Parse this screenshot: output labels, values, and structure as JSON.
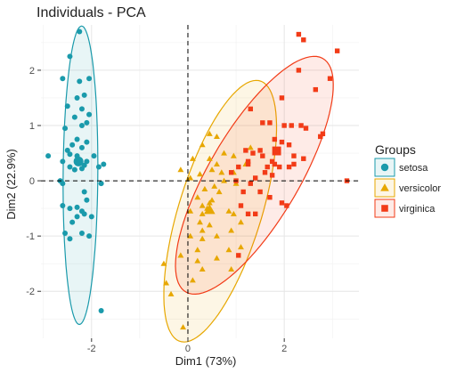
{
  "chart_data": {
    "type": "scatter",
    "title": "Individuals - PCA",
    "xlabel": "Dim1 (73%)",
    "ylabel": "Dim2 (22.9%)",
    "xlim": [
      -3.05,
      3.55
    ],
    "ylim": [
      -2.85,
      2.82
    ],
    "xticks": [
      -2,
      0,
      2
    ],
    "yticks": [
      -2,
      -1,
      0,
      1,
      2
    ],
    "grid": true,
    "reference_lines": {
      "x": 0,
      "y": 0,
      "style": "dashed"
    },
    "legend": {
      "title": "Groups",
      "position": "right"
    },
    "series": [
      {
        "name": "setosa",
        "color": "#1a9aab",
        "marker": "circle",
        "ellipse": {
          "cx": -2.23,
          "cy": 0.1,
          "rx": 0.36,
          "ry": 2.7,
          "angle_deg": -0.5
        },
        "points": [
          [
            -2.25,
            2.7
          ],
          [
            -2.45,
            2.25
          ],
          [
            -2.6,
            1.85
          ],
          [
            -2.05,
            1.85
          ],
          [
            -2.25,
            1.8
          ],
          [
            -2.15,
            1.55
          ],
          [
            -2.3,
            1.5
          ],
          [
            -2.5,
            1.35
          ],
          [
            -2.2,
            1.3
          ],
          [
            -2.05,
            1.2
          ],
          [
            -2.35,
            1.15
          ],
          [
            -2.1,
            1.05
          ],
          [
            -2.2,
            1.0
          ],
          [
            -2.55,
            0.95
          ],
          [
            -2.1,
            0.7
          ],
          [
            -2.3,
            0.75
          ],
          [
            -2.4,
            0.65
          ],
          [
            -2.5,
            0.55
          ],
          [
            -2.2,
            0.6
          ],
          [
            -2.45,
            0.48
          ],
          [
            -2.3,
            0.45
          ],
          [
            -1.95,
            0.45
          ],
          [
            -2.1,
            0.35
          ],
          [
            -2.9,
            0.45
          ],
          [
            -2.6,
            0.35
          ],
          [
            -2.25,
            0.32
          ],
          [
            -2.15,
            0.28
          ],
          [
            -2.45,
            0.25
          ],
          [
            -2.2,
            0.22
          ],
          [
            -2.35,
            0.2
          ],
          [
            -1.75,
            0.3
          ],
          [
            -1.85,
            0.25
          ],
          [
            -2.65,
            0.0
          ],
          [
            -2.6,
            -0.05
          ],
          [
            -1.8,
            -0.05
          ],
          [
            -2.15,
            -0.2
          ],
          [
            -2.1,
            -0.35
          ],
          [
            -2.6,
            -0.45
          ],
          [
            -2.3,
            -0.48
          ],
          [
            -2.45,
            -0.5
          ],
          [
            -2.2,
            -0.55
          ],
          [
            -2.15,
            -0.6
          ],
          [
            -2.3,
            -0.65
          ],
          [
            -2.0,
            -0.65
          ],
          [
            -2.4,
            -0.75
          ],
          [
            -2.55,
            -0.95
          ],
          [
            -2.2,
            -0.95
          ],
          [
            -2.05,
            -1.0
          ],
          [
            -2.45,
            -1.05
          ],
          [
            -1.8,
            -2.35
          ]
        ]
      },
      {
        "name": "versicolor",
        "color": "#e7a700",
        "marker": "triangle",
        "ellipse": {
          "cx": 0.67,
          "cy": -0.55,
          "rx": 2.5,
          "ry": 0.85,
          "angle_deg": 70
        },
        "points": [
          [
            0.45,
            0.85
          ],
          [
            0.6,
            0.8
          ],
          [
            0.3,
            0.65
          ],
          [
            1.3,
            0.6
          ],
          [
            0.75,
            0.5
          ],
          [
            0.95,
            0.45
          ],
          [
            0.1,
            0.4
          ],
          [
            0.45,
            0.4
          ],
          [
            1.2,
            0.3
          ],
          [
            0.6,
            0.3
          ],
          [
            -0.15,
            0.2
          ],
          [
            0.5,
            0.2
          ],
          [
            0.95,
            0.15
          ],
          [
            0.25,
            0.12
          ],
          [
            0.7,
            0.15
          ],
          [
            0.05,
            0.05
          ],
          [
            0.75,
            0.0
          ],
          [
            0.55,
            -0.1
          ],
          [
            0.35,
            -0.15
          ],
          [
            0.65,
            -0.2
          ],
          [
            1.0,
            -0.05
          ],
          [
            0.2,
            -0.3
          ],
          [
            0.5,
            -0.35
          ],
          [
            0.45,
            -0.4
          ],
          [
            0.3,
            -0.45
          ],
          [
            0.4,
            -0.5
          ],
          [
            0.05,
            -0.55
          ],
          [
            0.3,
            -0.6
          ],
          [
            0.85,
            -0.55
          ],
          [
            0.95,
            -0.6
          ],
          [
            0.25,
            -0.75
          ],
          [
            0.45,
            -0.8
          ],
          [
            1.1,
            -0.75
          ],
          [
            0.3,
            -0.9
          ],
          [
            0.9,
            -0.9
          ],
          [
            0.05,
            -1.0
          ],
          [
            0.3,
            -1.05
          ],
          [
            0.6,
            -1.0
          ],
          [
            0.2,
            -1.25
          ],
          [
            0.85,
            -1.25
          ],
          [
            1.1,
            -1.2
          ],
          [
            -0.15,
            -1.35
          ],
          [
            0.2,
            -1.45
          ],
          [
            0.6,
            -1.4
          ],
          [
            0.3,
            -1.6
          ],
          [
            0.9,
            -1.6
          ],
          [
            0.1,
            -1.8
          ],
          [
            -0.5,
            -1.5
          ],
          [
            -0.45,
            -1.85
          ],
          [
            -0.35,
            -2.05
          ],
          [
            -0.1,
            -2.65
          ]
        ]
      },
      {
        "name": "virginica",
        "color": "#f23b17",
        "marker": "square",
        "ellipse": {
          "cx": 1.38,
          "cy": 0.1,
          "rx": 2.55,
          "ry": 0.9,
          "angle_deg": 55
        },
        "points": [
          [
            2.3,
            2.65
          ],
          [
            2.4,
            2.55
          ],
          [
            2.3,
            2.0
          ],
          [
            3.1,
            2.35
          ],
          [
            2.95,
            1.85
          ],
          [
            2.65,
            1.65
          ],
          [
            1.95,
            1.5
          ],
          [
            1.3,
            1.3
          ],
          [
            1.55,
            1.05
          ],
          [
            1.7,
            1.05
          ],
          [
            2.0,
            1.0
          ],
          [
            2.15,
            1.0
          ],
          [
            2.35,
            1.0
          ],
          [
            2.45,
            0.95
          ],
          [
            2.8,
            0.85
          ],
          [
            2.75,
            0.8
          ],
          [
            1.8,
            0.75
          ],
          [
            1.95,
            0.7
          ],
          [
            2.1,
            0.65
          ],
          [
            1.5,
            0.55
          ],
          [
            1.55,
            0.45
          ],
          [
            2.2,
            0.45
          ],
          [
            2.4,
            0.4
          ],
          [
            2.2,
            0.3
          ],
          [
            1.75,
            0.35
          ],
          [
            1.8,
            0.3
          ],
          [
            1.65,
            0.25
          ],
          [
            1.9,
            0.25
          ],
          [
            2.1,
            0.25
          ],
          [
            1.25,
            0.3
          ],
          [
            1.35,
            0.5
          ],
          [
            1.2,
            0.55
          ],
          [
            1.25,
            0.35
          ],
          [
            1.05,
            0.25
          ],
          [
            0.9,
            0.15
          ],
          [
            1.0,
            0.0
          ],
          [
            1.4,
            0.05
          ],
          [
            1.6,
            0.15
          ],
          [
            1.75,
            0.1
          ],
          [
            1.3,
            -0.05
          ],
          [
            1.15,
            -0.2
          ],
          [
            1.5,
            -0.2
          ],
          [
            1.7,
            -0.3
          ],
          [
            1.95,
            -0.4
          ],
          [
            2.05,
            -0.45
          ],
          [
            1.1,
            -0.45
          ],
          [
            1.25,
            -0.6
          ],
          [
            1.4,
            -0.6
          ],
          [
            1.05,
            -1.35
          ],
          [
            3.3,
            0.0
          ]
        ]
      }
    ]
  }
}
